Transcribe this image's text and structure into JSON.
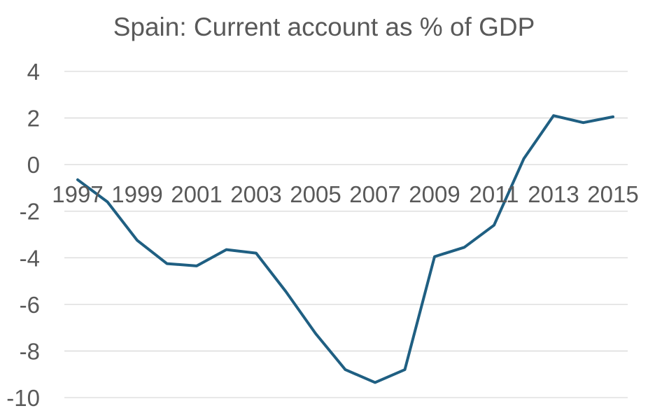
{
  "chart_data": {
    "type": "line",
    "title": "Spain: Current account as % of GDP",
    "xlabel": "",
    "ylabel": "",
    "ylim": [
      -10,
      4
    ],
    "yticks": [
      4,
      2,
      0,
      -2,
      -4,
      -6,
      -8,
      -10
    ],
    "xtick_labels": [
      "1997",
      "1999",
      "2001",
      "2003",
      "2005",
      "2007",
      "2009",
      "2011",
      "2013",
      "2015"
    ],
    "x": [
      1997,
      1998,
      1999,
      2000,
      2001,
      2002,
      2003,
      2004,
      2005,
      2006,
      2007,
      2008,
      2009,
      2010,
      2011,
      2012,
      2013,
      2014,
      2015
    ],
    "series": [
      {
        "values": [
          -0.65,
          -1.6,
          -3.25,
          -4.25,
          -4.35,
          -3.65,
          -3.8,
          -5.45,
          -7.25,
          -8.8,
          -9.35,
          -8.8,
          -3.95,
          -3.55,
          -2.6,
          0.25,
          2.1,
          1.8,
          2.05
        ],
        "color": "#1f5f82"
      }
    ],
    "grid": true,
    "gridline_color": "#d9d9d9",
    "legend": "none"
  }
}
